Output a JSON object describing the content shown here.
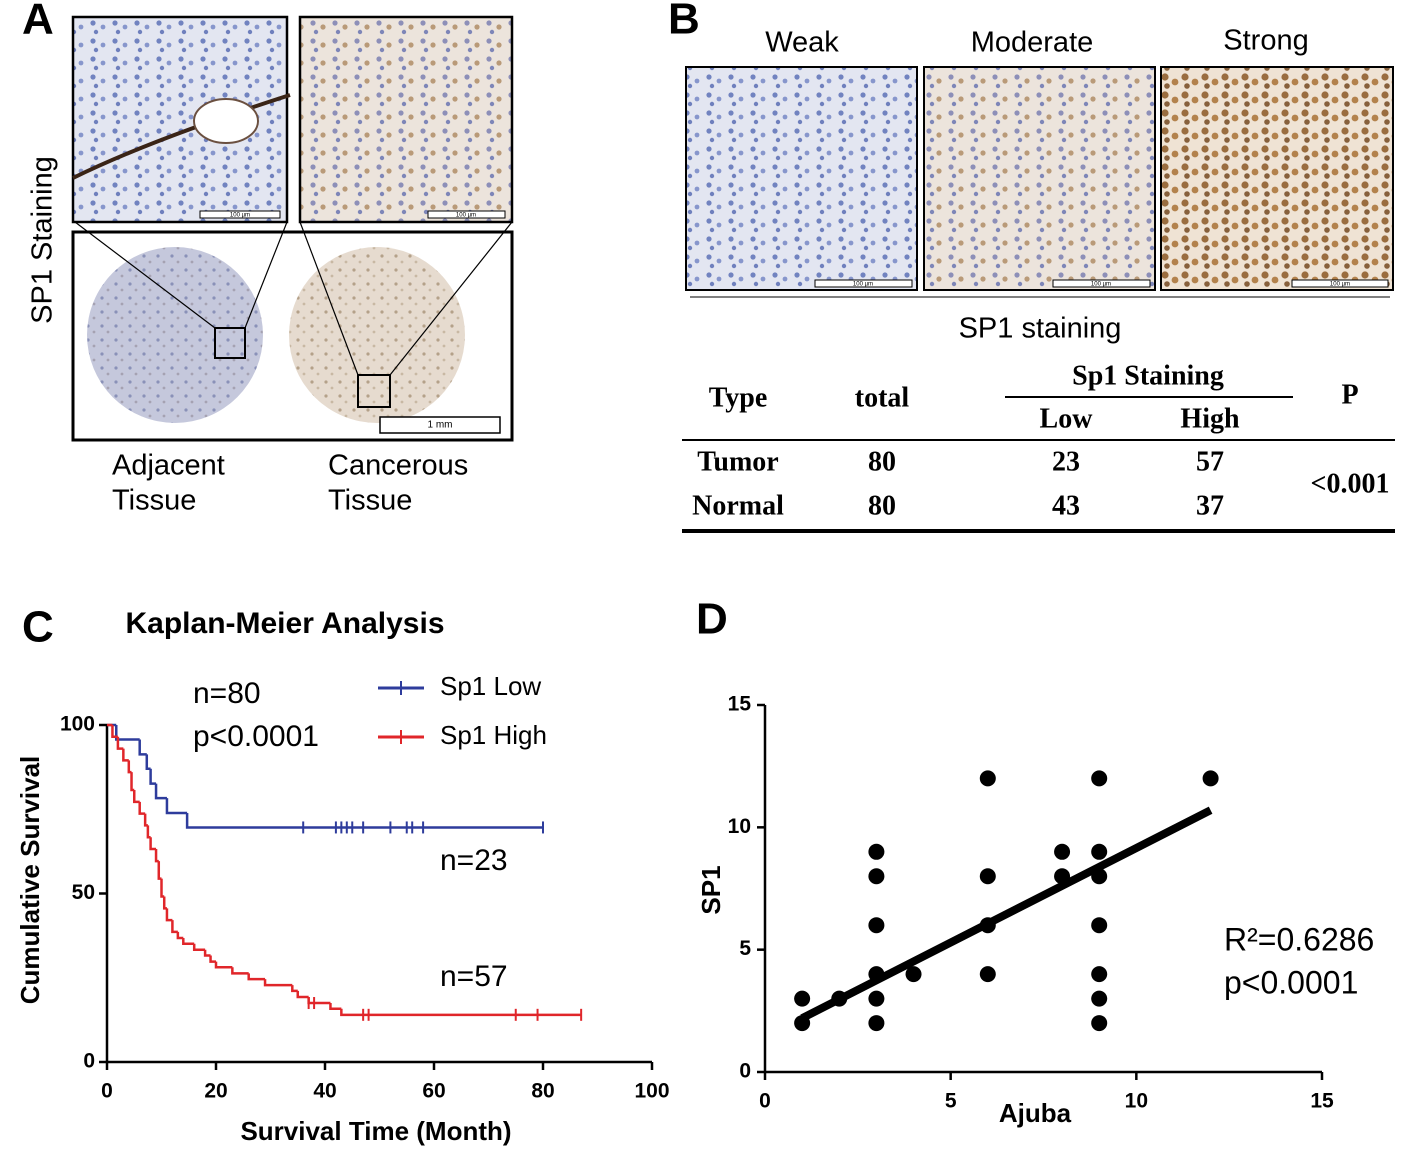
{
  "panel_labels": [
    "A",
    "B",
    "C",
    "D"
  ],
  "panel_a": {
    "y_label": "SP1 Staining",
    "scale_bars": [
      "100 µm",
      "100 µm",
      "1 mm"
    ],
    "captions": [
      [
        "Adjacent",
        "Tissue"
      ],
      [
        "Cancerous",
        "Tissue"
      ]
    ]
  },
  "panel_b": {
    "grades": [
      "Weak",
      "Moderate",
      "Strong"
    ],
    "scale_bars": [
      "100 µm",
      "100 µm",
      "100 µm"
    ],
    "caption": "SP1 staining",
    "table": {
      "header": {
        "type": "Type",
        "total": "total",
        "group": "Sp1 Staining",
        "low": "Low",
        "high": "High",
        "p": "P"
      },
      "rows": [
        [
          "Tumor",
          80,
          23,
          57
        ],
        [
          "Normal",
          80,
          43,
          37
        ]
      ],
      "p_value": "<0.001"
    }
  },
  "chart_data": [
    {
      "type": "survival",
      "title": "Kaplan-Meier Analysis",
      "x_label": "Survival Time (Month)",
      "y_label": "Cumulative Survival",
      "xlim": [
        0,
        100
      ],
      "ylim": [
        0,
        100
      ],
      "xticks": [
        0,
        20,
        40,
        60,
        80,
        100
      ],
      "yticks": [
        0,
        50,
        100
      ],
      "annotations": [
        "n=80",
        "p<0.0001",
        "n=23",
        "n=57"
      ],
      "series": [
        {
          "name": "Sp1 Low",
          "color": "#2e3c9c",
          "x": [
            0,
            1.7,
            6,
            7.3,
            8,
            9,
            11,
            14.7
          ],
          "values": [
            100,
            95.7,
            91.3,
            87,
            82.6,
            78.3,
            73.9,
            69.6
          ],
          "censored": [
            36,
            42,
            43,
            44,
            45,
            47,
            52,
            55,
            56,
            58,
            80
          ]
        },
        {
          "name": "Sp1 High",
          "color": "#e0262a",
          "x": [
            0,
            1,
            2,
            3,
            4,
            4.5,
            5,
            6,
            7,
            7.5,
            8,
            9,
            9.5,
            10,
            10.5,
            11,
            12,
            13,
            14,
            16,
            18,
            19,
            20,
            23,
            26,
            29,
            34,
            35,
            37,
            41,
            43
          ],
          "values": [
            100,
            96.5,
            93,
            89.5,
            86,
            80.7,
            77.2,
            73.7,
            70.2,
            66.7,
            63.2,
            59.6,
            54.4,
            49.1,
            45.6,
            42.1,
            38.6,
            36.8,
            35.1,
            33.3,
            31.6,
            29.8,
            28.1,
            26.3,
            24.6,
            22.8,
            21.1,
            19.3,
            17.5,
            15.8,
            14
          ],
          "censored": [
            37,
            38,
            47,
            48,
            75,
            79,
            87
          ]
        }
      ]
    },
    {
      "type": "scatter",
      "x_label": "Ajuba",
      "y_label": "SP1",
      "xlim": [
        0,
        15
      ],
      "ylim": [
        0,
        15
      ],
      "xticks": [
        0,
        5,
        10,
        15
      ],
      "yticks": [
        0,
        5,
        10,
        15
      ],
      "color": "#000000",
      "x": [
        1,
        1,
        2,
        3,
        3,
        3,
        3,
        3,
        3,
        4,
        6,
        6,
        6,
        6,
        8,
        8,
        9,
        9,
        9,
        9,
        9,
        9,
        9,
        12
      ],
      "values": [
        2,
        3,
        3,
        2,
        3,
        4,
        6,
        8,
        9,
        4,
        4,
        6,
        8,
        12,
        8,
        9,
        2,
        3,
        4,
        6,
        8,
        9,
        12,
        12
      ],
      "fit": {
        "x": [
          1,
          12
        ],
        "values": [
          2.2,
          10.7
        ]
      },
      "annotations": [
        "R²=0.6286",
        "p<0.0001"
      ]
    }
  ]
}
